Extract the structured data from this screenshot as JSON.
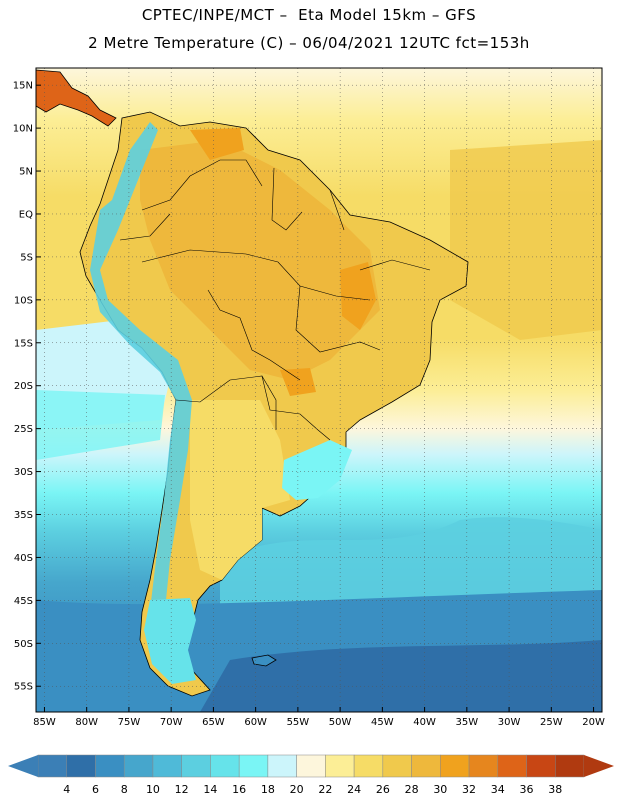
{
  "header": {
    "line1": "CPTEC/INPE/MCT –  Eta Model 15km – GFS",
    "line2": "2 Metre Temperature (C) – 06/04/2021 12UTC fct=153h"
  },
  "map": {
    "lon_range": [
      -86,
      -19
    ],
    "lat_range": [
      -58,
      17
    ],
    "lon_ticks": [
      {
        "value": -85,
        "label": "85W"
      },
      {
        "value": -80,
        "label": "80W"
      },
      {
        "value": -75,
        "label": "75W"
      },
      {
        "value": -70,
        "label": "70W"
      },
      {
        "value": -65,
        "label": "65W"
      },
      {
        "value": -60,
        "label": "60W"
      },
      {
        "value": -55,
        "label": "55W"
      },
      {
        "value": -50,
        "label": "50W"
      },
      {
        "value": -45,
        "label": "45W"
      },
      {
        "value": -40,
        "label": "40W"
      },
      {
        "value": -35,
        "label": "35W"
      },
      {
        "value": -30,
        "label": "30W"
      },
      {
        "value": -25,
        "label": "25W"
      },
      {
        "value": -20,
        "label": "20W"
      }
    ],
    "lat_ticks": [
      {
        "value": 15,
        "label": "15N"
      },
      {
        "value": 10,
        "label": "10N"
      },
      {
        "value": 5,
        "label": "5N"
      },
      {
        "value": 0,
        "label": "EQ"
      },
      {
        "value": -5,
        "label": "5S"
      },
      {
        "value": -10,
        "label": "10S"
      },
      {
        "value": -15,
        "label": "15S"
      },
      {
        "value": -20,
        "label": "20S"
      },
      {
        "value": -25,
        "label": "25S"
      },
      {
        "value": -30,
        "label": "30S"
      },
      {
        "value": -35,
        "label": "35S"
      },
      {
        "value": -40,
        "label": "40S"
      },
      {
        "value": -45,
        "label": "45S"
      },
      {
        "value": -50,
        "label": "50S"
      },
      {
        "value": -55,
        "label": "55S"
      }
    ]
  },
  "colorbar": {
    "levels": [
      "4",
      "6",
      "8",
      "10",
      "12",
      "14",
      "16",
      "18",
      "20",
      "22",
      "24",
      "26",
      "28",
      "30",
      "32",
      "34",
      "36",
      "38"
    ],
    "colors": [
      "#3b7fb6",
      "#2f6fa8",
      "#3a8fc2",
      "#46a6cc",
      "#4fbad8",
      "#5ccfe0",
      "#66e3ea",
      "#7af5f5",
      "#ccf5fb",
      "#fdf6dc",
      "#fcee96",
      "#f6dc66",
      "#f0c94c",
      "#eeb83c",
      "#f0a21e",
      "#e6861e",
      "#de6418",
      "#c84614",
      "#b03a10"
    ],
    "low_arrow_color": "#3b7fb6",
    "high_arrow_color": "#b03a10"
  }
}
